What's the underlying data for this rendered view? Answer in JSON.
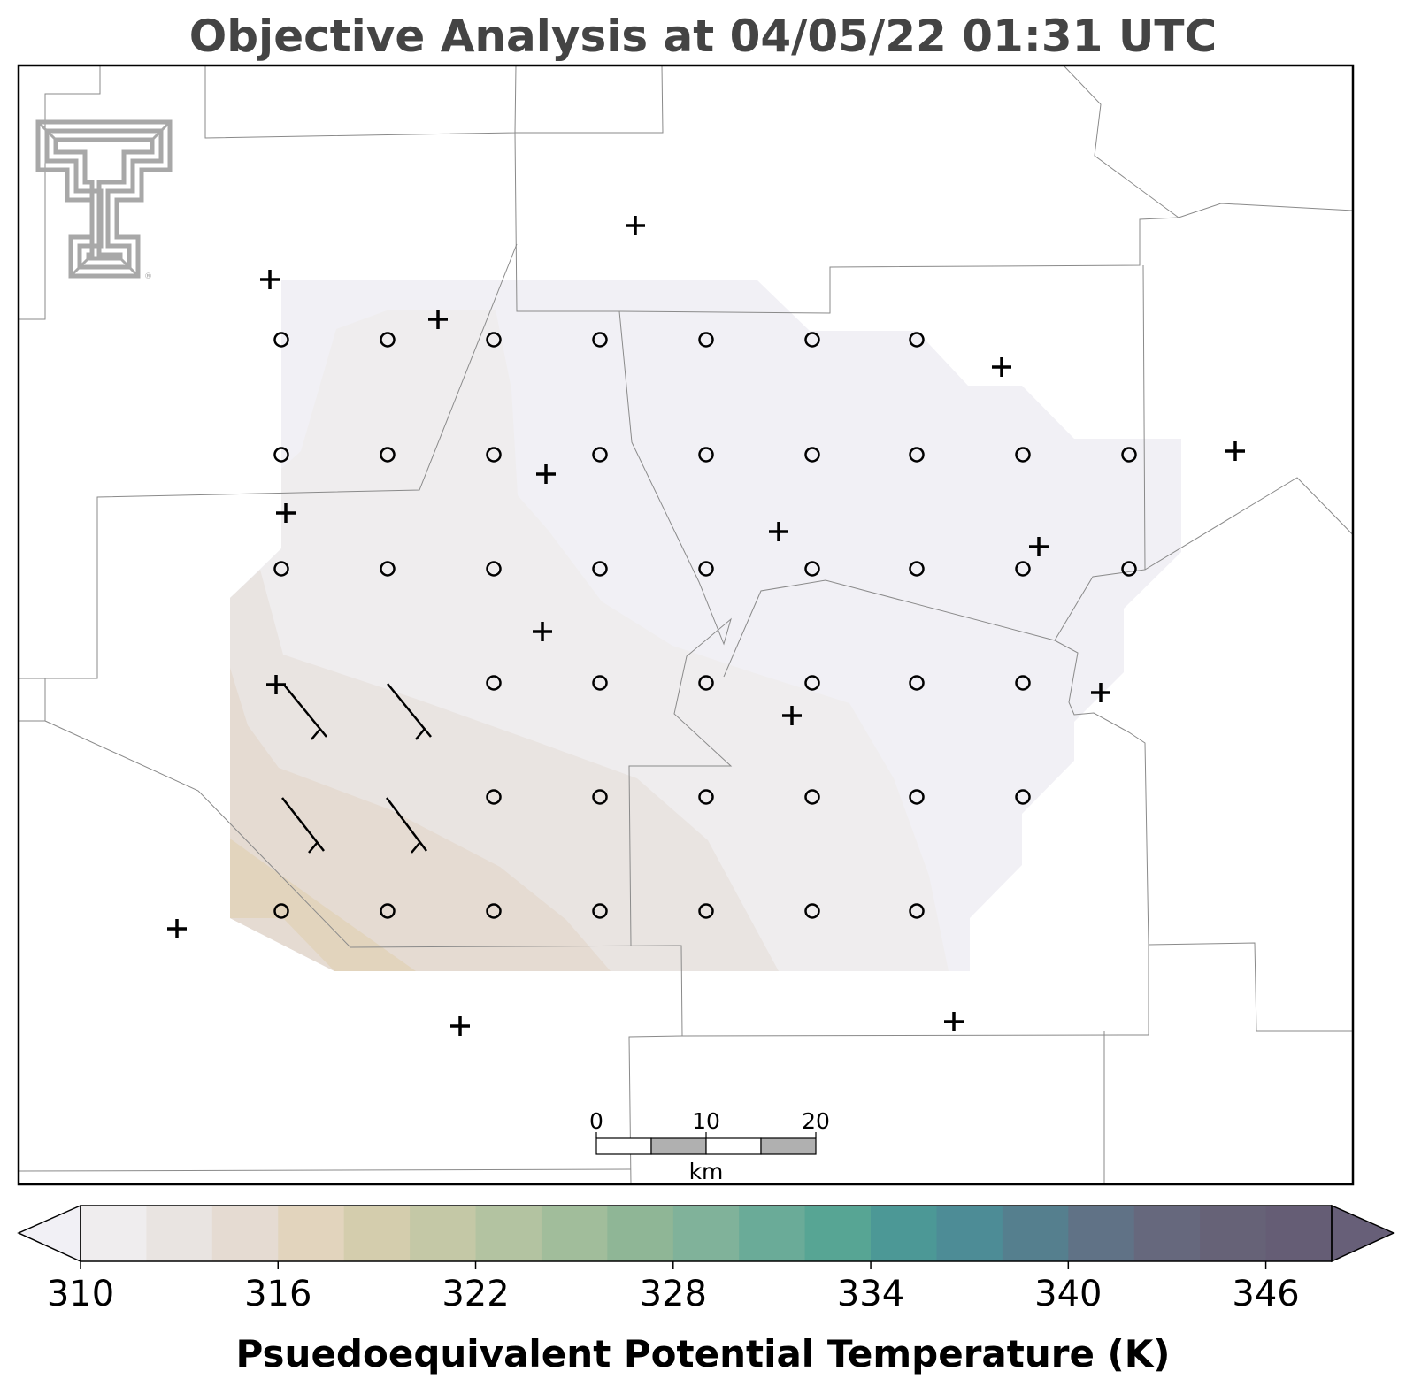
{
  "title": "Objective Analysis at 04/05/22 01:31 UTC",
  "colorbar": {
    "label": "Psuedoequivalent Potential Temperature (K)",
    "min": 310,
    "step": 2,
    "ticks": [
      "310",
      "316",
      "322",
      "328",
      "334",
      "340",
      "346"
    ],
    "colors": [
      "#f1f0f5",
      "#efedee",
      "#e9e4e1",
      "#e5dbd2",
      "#e2d4bd",
      "#d4cdad",
      "#c4c8a6",
      "#b3c3a1",
      "#a1bd9b",
      "#8fb696",
      "#80b29a",
      "#6aab98",
      "#57a594",
      "#4c9896",
      "#4d8c96",
      "#557f8e",
      "#607286",
      "#66687d",
      "#666277",
      "#655d75",
      "#675f78"
    ]
  },
  "scale_bar": {
    "labels": [
      "0",
      "10",
      "20"
    ],
    "unit": "km"
  },
  "logo": {
    "name": "Texas Tech University Double T",
    "mark": "®"
  },
  "analysis_field": {
    "variable": "Psuedoequivalent Potential Temperature (K)",
    "grid_points": "circle-icon markers on a 10 x 8 analysis grid",
    "stations": "plus-icon markers"
  }
}
